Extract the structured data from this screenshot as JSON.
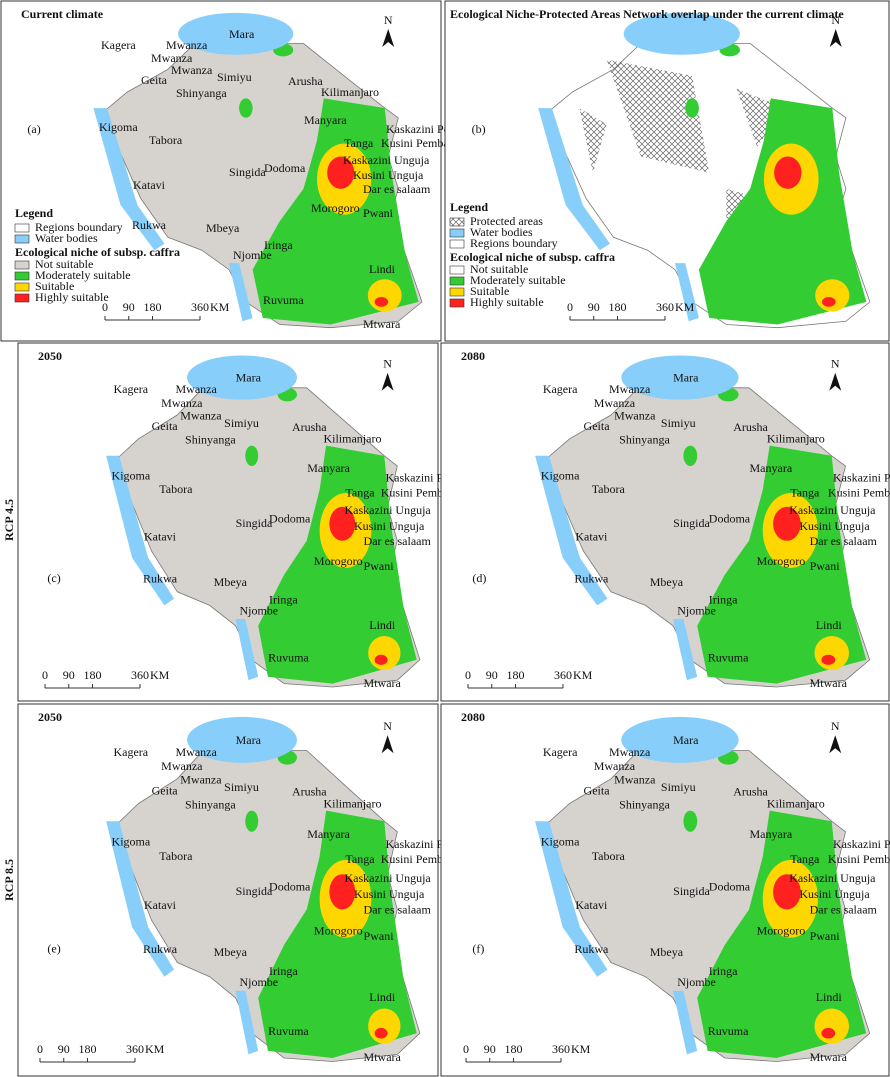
{
  "row_labels": [
    "RCP 4.5",
    "RCP 8.5"
  ],
  "north": "N",
  "scale_bar": {
    "ticks": [
      0,
      90,
      180,
      360
    ],
    "unit": "KM"
  },
  "region_labels": [
    "Kagera",
    "Mwanza",
    "Mara",
    "Mwanza",
    "Geita",
    "Mwanza",
    "Simiyu",
    "Shinyanga",
    "Arusha",
    "Kilimanjaro",
    "Manyara",
    "Kaskazini Pemba",
    "Tanga",
    "Kusini Pemba",
    "Kigoma",
    "Tabora",
    "Singida",
    "Dodoma",
    "Kaskazini Unguja",
    "Kusini Unguja",
    "Katavi",
    "Dar es salaam",
    "Morogoro",
    "Pwani",
    "Rukwa",
    "Mbeya",
    "Iringa",
    "Njombe",
    "Lindi",
    "Ruvuma",
    "Mtwara"
  ],
  "panels": [
    {
      "letter": "(a)",
      "title": "Current climate",
      "legend": {
        "heading": "Legend",
        "items": [
          {
            "label": "Regions boundary",
            "color": "#ffffff"
          },
          {
            "label": "Water bodies",
            "color": "#87cefa"
          }
        ],
        "niche_title": "Ecological niche of subsp. caffra",
        "classes": [
          {
            "label": "Not suitable",
            "color": "#d6d3cf"
          },
          {
            "label": "Moderately suitable",
            "color": "#33cc33"
          },
          {
            "label": "Suitable",
            "color": "#ffd700"
          },
          {
            "label": "Highly suitable",
            "color": "#ff2020"
          }
        ]
      }
    },
    {
      "letter": "(b)",
      "title": "Ecological Niche-Protected Areas Network overlap under the current climate",
      "legend": {
        "heading": "Legend",
        "items": [
          {
            "label": "Protected areas",
            "pattern": "crosshatch"
          },
          {
            "label": "Water bodies",
            "color": "#87cefa"
          },
          {
            "label": "Regions boundary",
            "color": "#ffffff"
          }
        ],
        "niche_title": "Ecological niche of subsp. caffra",
        "classes": [
          {
            "label": "Not suitable",
            "color": "#ffffff"
          },
          {
            "label": "Moderately suitable",
            "color": "#33cc33"
          },
          {
            "label": "Suitable",
            "color": "#ffd700"
          },
          {
            "label": "Highly suitable",
            "color": "#ff2020"
          }
        ]
      }
    },
    {
      "letter": "(c)",
      "title": "2050"
    },
    {
      "letter": "(d)",
      "title": "2080"
    },
    {
      "letter": "(e)",
      "title": "2050"
    },
    {
      "letter": "(f)",
      "title": "2080"
    }
  ]
}
